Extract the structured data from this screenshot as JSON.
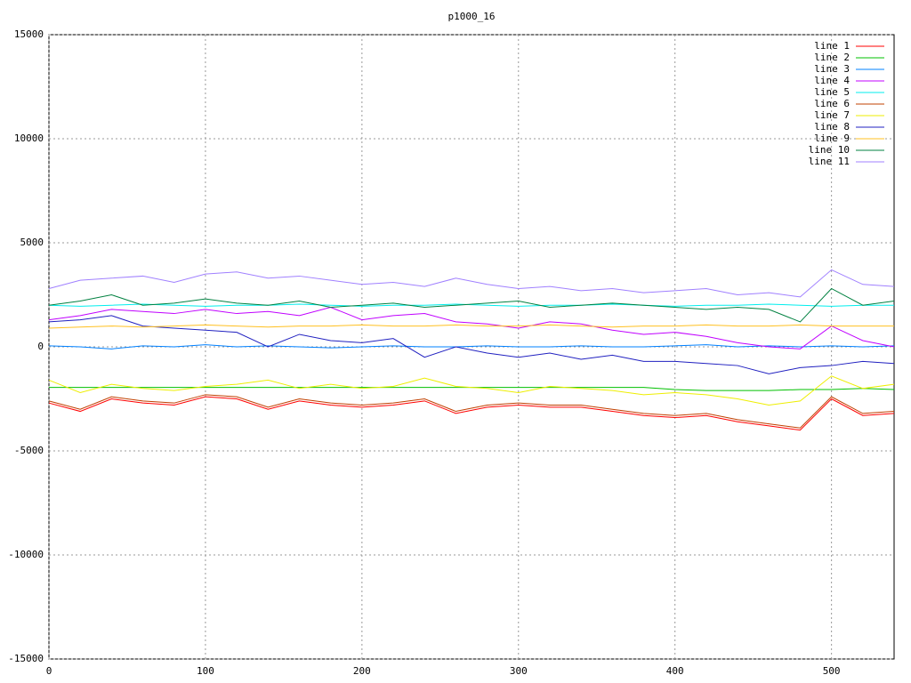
{
  "chart_data": {
    "type": "line",
    "title": "p1000_16",
    "x": [
      0,
      20,
      40,
      60,
      80,
      100,
      120,
      140,
      160,
      180,
      200,
      220,
      240,
      260,
      280,
      300,
      320,
      340,
      360,
      380,
      400,
      420,
      440,
      460,
      480,
      500,
      520,
      540
    ],
    "xlim": [
      0,
      540
    ],
    "xticks": [
      0,
      100,
      200,
      300,
      400,
      500
    ],
    "ylim": [
      -15000,
      15000
    ],
    "yticks": [
      -15000,
      -10000,
      -5000,
      0,
      5000,
      10000,
      15000
    ],
    "grid": true,
    "legend": "top-right",
    "series": [
      {
        "name": "line 1",
        "color": "#ff0000",
        "values": [
          -2700,
          -3100,
          -2500,
          -2700,
          -2800,
          -2400,
          -2500,
          -3000,
          -2600,
          -2800,
          -2900,
          -2800,
          -2600,
          -3200,
          -2900,
          -2800,
          -2900,
          -2900,
          -3100,
          -3300,
          -3400,
          -3300,
          -3600,
          -3800,
          -4000,
          -2500,
          -3300,
          -3200
        ]
      },
      {
        "name": "line 2",
        "color": "#00c000",
        "values": [
          -1950,
          -1950,
          -1950,
          -1950,
          -1950,
          -1950,
          -1950,
          -1950,
          -1950,
          -1950,
          -1950,
          -1950,
          -1950,
          -1950,
          -1950,
          -1950,
          -1950,
          -1950,
          -1950,
          -1950,
          -2050,
          -2100,
          -2100,
          -2100,
          -2050,
          -2050,
          -2000,
          -2050
        ]
      },
      {
        "name": "line 3",
        "color": "#0080ff",
        "values": [
          50,
          0,
          -100,
          50,
          0,
          100,
          0,
          50,
          0,
          -50,
          0,
          50,
          0,
          0,
          50,
          0,
          0,
          50,
          0,
          0,
          50,
          100,
          0,
          50,
          0,
          50,
          0,
          50
        ]
      },
      {
        "name": "line 4",
        "color": "#c000ff",
        "values": [
          1300,
          1500,
          1800,
          1700,
          1600,
          1800,
          1600,
          1700,
          1500,
          1900,
          1300,
          1500,
          1600,
          1200,
          1100,
          900,
          1200,
          1100,
          800,
          600,
          700,
          500,
          200,
          0,
          -100,
          1000,
          300,
          0
        ]
      },
      {
        "name": "line 5",
        "color": "#00eeee",
        "values": [
          2000,
          1950,
          2000,
          2050,
          2000,
          1950,
          2000,
          2000,
          2050,
          2000,
          1950,
          2000,
          2000,
          2050,
          2000,
          1950,
          2000,
          2000,
          2050,
          2000,
          1950,
          2000,
          2000,
          2050,
          2000,
          1950,
          2000,
          2000
        ]
      },
      {
        "name": "line 6",
        "color": "#c04000",
        "values": [
          -2600,
          -3000,
          -2400,
          -2600,
          -2700,
          -2300,
          -2400,
          -2900,
          -2500,
          -2700,
          -2800,
          -2700,
          -2500,
          -3100,
          -2800,
          -2700,
          -2800,
          -2800,
          -3000,
          -3200,
          -3300,
          -3200,
          -3500,
          -3700,
          -3900,
          -2400,
          -3200,
          -3100
        ]
      },
      {
        "name": "line 7",
        "color": "#eeee00",
        "values": [
          -1600,
          -2200,
          -1800,
          -2000,
          -2100,
          -1900,
          -1800,
          -1600,
          -2000,
          -1800,
          -2000,
          -1900,
          -1500,
          -1900,
          -2000,
          -2200,
          -1900,
          -2000,
          -2100,
          -2300,
          -2200,
          -2300,
          -2500,
          -2800,
          -2600,
          -1400,
          -2000,
          -1800
        ]
      },
      {
        "name": "line 8",
        "color": "#2020c0",
        "values": [
          1200,
          1300,
          1500,
          1000,
          900,
          800,
          700,
          0,
          600,
          300,
          200,
          400,
          -500,
          0,
          -300,
          -500,
          -300,
          -600,
          -400,
          -700,
          -700,
          -800,
          -900,
          -1300,
          -1000,
          -900,
          -700,
          -800
        ]
      },
      {
        "name": "line 9",
        "color": "#ffc020",
        "values": [
          900,
          950,
          1000,
          950,
          1000,
          1050,
          1000,
          950,
          1000,
          1000,
          1050,
          1000,
          1000,
          1050,
          1000,
          1000,
          1050,
          1000,
          950,
          1000,
          1000,
          1050,
          1000,
          1000,
          1050,
          1000,
          1000,
          1000
        ]
      },
      {
        "name": "line 10",
        "color": "#008040",
        "values": [
          2000,
          2200,
          2500,
          2000,
          2100,
          2300,
          2100,
          2000,
          2200,
          1900,
          2000,
          2100,
          1900,
          2000,
          2100,
          2200,
          1900,
          2000,
          2100,
          2000,
          1900,
          1800,
          1900,
          1800,
          1200,
          2800,
          2000,
          2200
        ]
      },
      {
        "name": "line 11",
        "color": "#a080ff",
        "values": [
          2800,
          3200,
          3300,
          3400,
          3100,
          3500,
          3600,
          3300,
          3400,
          3200,
          3000,
          3100,
          2900,
          3300,
          3000,
          2800,
          2900,
          2700,
          2800,
          2600,
          2700,
          2800,
          2500,
          2600,
          2400,
          3700,
          3000,
          2900
        ]
      }
    ]
  }
}
